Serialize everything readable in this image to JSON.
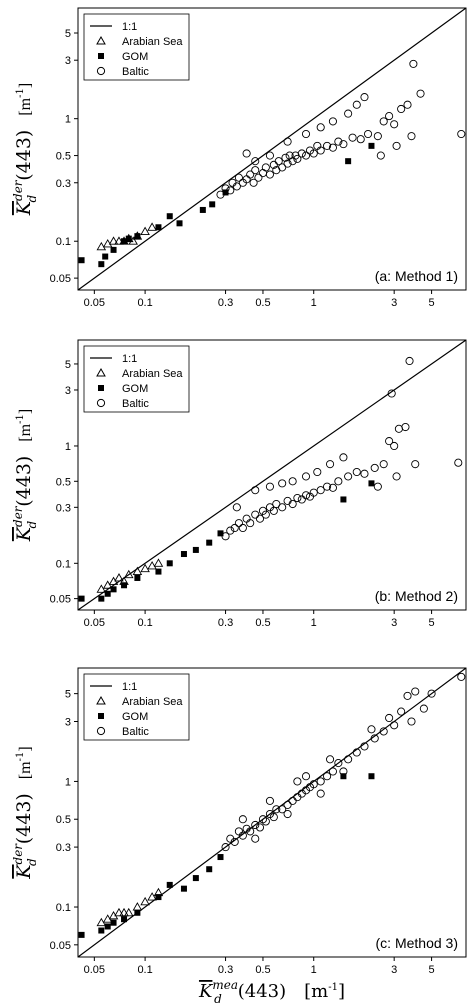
{
  "figure": {
    "ylabel": {
      "main": "K",
      "sub": "d",
      "sup": "der",
      "arg": "(443)",
      "unit": "[m-1]"
    },
    "xlabel": {
      "main": "K",
      "sub": "d",
      "sup": "mea",
      "arg": "(443)",
      "unit": "[m-1]"
    },
    "tick_labels": [
      "0.05",
      "0.1",
      "0.3",
      "0.5",
      "1",
      "3",
      "5"
    ],
    "legend": [
      "1:1",
      "Arabian Sea",
      "GOM",
      "Baltic"
    ]
  },
  "chart_data": [
    {
      "type": "scatter",
      "annotation": "(a: Method 1)",
      "xscale": "log",
      "yscale": "log",
      "xlim": [
        0.04,
        8.0
      ],
      "ylim": [
        0.04,
        8.0
      ],
      "xticks": [
        0.05,
        0.1,
        0.3,
        0.5,
        1,
        3,
        5
      ],
      "yticks": [
        0.05,
        0.1,
        0.3,
        0.5,
        1,
        3,
        5
      ],
      "reference_line": "1:1",
      "legend_position": "top-left",
      "series": [
        {
          "name": "Arabian Sea",
          "marker": "open-triangle",
          "points": [
            [
              0.055,
              0.09
            ],
            [
              0.06,
              0.095
            ],
            [
              0.065,
              0.1
            ],
            [
              0.07,
              0.1
            ],
            [
              0.075,
              0.1
            ],
            [
              0.08,
              0.105
            ],
            [
              0.085,
              0.1
            ],
            [
              0.09,
              0.11
            ],
            [
              0.1,
              0.12
            ],
            [
              0.11,
              0.13
            ]
          ]
        },
        {
          "name": "GOM",
          "marker": "filled-square",
          "points": [
            [
              0.042,
              0.07
            ],
            [
              0.055,
              0.065
            ],
            [
              0.058,
              0.075
            ],
            [
              0.065,
              0.085
            ],
            [
              0.075,
              0.1
            ],
            [
              0.08,
              0.105
            ],
            [
              0.09,
              0.11
            ],
            [
              0.12,
              0.13
            ],
            [
              0.14,
              0.16
            ],
            [
              0.16,
              0.14
            ],
            [
              0.22,
              0.18
            ],
            [
              0.25,
              0.2
            ],
            [
              0.3,
              0.25
            ],
            [
              1.6,
              0.45
            ],
            [
              2.2,
              0.6
            ]
          ]
        },
        {
          "name": "Baltic",
          "marker": "open-circle",
          "points": [
            [
              0.28,
              0.24
            ],
            [
              0.3,
              0.27
            ],
            [
              0.32,
              0.26
            ],
            [
              0.33,
              0.3
            ],
            [
              0.35,
              0.28
            ],
            [
              0.36,
              0.33
            ],
            [
              0.38,
              0.3
            ],
            [
              0.4,
              0.32
            ],
            [
              0.42,
              0.35
            ],
            [
              0.44,
              0.3
            ],
            [
              0.45,
              0.38
            ],
            [
              0.47,
              0.33
            ],
            [
              0.5,
              0.36
            ],
            [
              0.52,
              0.4
            ],
            [
              0.55,
              0.35
            ],
            [
              0.58,
              0.42
            ],
            [
              0.6,
              0.38
            ],
            [
              0.62,
              0.45
            ],
            [
              0.65,
              0.4
            ],
            [
              0.68,
              0.48
            ],
            [
              0.7,
              0.43
            ],
            [
              0.72,
              0.5
            ],
            [
              0.75,
              0.45
            ],
            [
              0.78,
              0.5
            ],
            [
              0.8,
              0.47
            ],
            [
              0.85,
              0.52
            ],
            [
              0.9,
              0.5
            ],
            [
              0.95,
              0.55
            ],
            [
              1.0,
              0.52
            ],
            [
              1.05,
              0.6
            ],
            [
              1.1,
              0.55
            ],
            [
              1.2,
              0.6
            ],
            [
              1.3,
              0.58
            ],
            [
              1.4,
              0.65
            ],
            [
              1.5,
              0.62
            ],
            [
              1.7,
              0.7
            ],
            [
              1.9,
              0.68
            ],
            [
              2.1,
              0.75
            ],
            [
              2.4,
              0.72
            ],
            [
              2.6,
              0.95
            ],
            [
              2.8,
              1.05
            ],
            [
              3.0,
              0.9
            ],
            [
              3.3,
              1.2
            ],
            [
              3.6,
              1.3
            ],
            [
              3.9,
              2.8
            ],
            [
              4.3,
              1.6
            ],
            [
              2.0,
              1.5
            ],
            [
              1.8,
              1.3
            ],
            [
              1.6,
              1.1
            ],
            [
              1.3,
              0.95
            ],
            [
              1.1,
              0.85
            ],
            [
              0.9,
              0.75
            ],
            [
              0.7,
              0.65
            ],
            [
              0.55,
              0.5
            ],
            [
              0.45,
              0.45
            ],
            [
              0.4,
              0.52
            ],
            [
              7.5,
              0.75
            ],
            [
              3.8,
              0.72
            ],
            [
              3.1,
              0.6
            ],
            [
              2.5,
              0.5
            ]
          ]
        }
      ]
    },
    {
      "type": "scatter",
      "annotation": "(b: Method 2)",
      "xscale": "log",
      "yscale": "log",
      "xlim": [
        0.04,
        8.0
      ],
      "ylim": [
        0.04,
        8.0
      ],
      "xticks": [
        0.05,
        0.1,
        0.3,
        0.5,
        1,
        3,
        5
      ],
      "yticks": [
        0.05,
        0.1,
        0.3,
        0.5,
        1,
        3,
        5
      ],
      "reference_line": "1:1",
      "legend_position": "top-left",
      "series": [
        {
          "name": "Arabian Sea",
          "marker": "open-triangle",
          "points": [
            [
              0.055,
              0.06
            ],
            [
              0.06,
              0.065
            ],
            [
              0.065,
              0.07
            ],
            [
              0.07,
              0.075
            ],
            [
              0.075,
              0.07
            ],
            [
              0.08,
              0.08
            ],
            [
              0.09,
              0.085
            ],
            [
              0.1,
              0.09
            ],
            [
              0.11,
              0.095
            ],
            [
              0.12,
              0.1
            ]
          ]
        },
        {
          "name": "GOM",
          "marker": "filled-square",
          "points": [
            [
              0.042,
              0.05
            ],
            [
              0.055,
              0.05
            ],
            [
              0.06,
              0.055
            ],
            [
              0.065,
              0.06
            ],
            [
              0.075,
              0.065
            ],
            [
              0.09,
              0.075
            ],
            [
              0.12,
              0.085
            ],
            [
              0.14,
              0.1
            ],
            [
              0.17,
              0.12
            ],
            [
              0.2,
              0.13
            ],
            [
              0.24,
              0.15
            ],
            [
              0.28,
              0.18
            ],
            [
              1.5,
              0.35
            ],
            [
              2.2,
              0.48
            ]
          ]
        },
        {
          "name": "Baltic",
          "marker": "open-circle",
          "points": [
            [
              0.3,
              0.17
            ],
            [
              0.32,
              0.19
            ],
            [
              0.34,
              0.2
            ],
            [
              0.36,
              0.22
            ],
            [
              0.38,
              0.2
            ],
            [
              0.4,
              0.24
            ],
            [
              0.42,
              0.22
            ],
            [
              0.45,
              0.26
            ],
            [
              0.48,
              0.24
            ],
            [
              0.5,
              0.28
            ],
            [
              0.52,
              0.26
            ],
            [
              0.55,
              0.3
            ],
            [
              0.58,
              0.28
            ],
            [
              0.6,
              0.32
            ],
            [
              0.65,
              0.3
            ],
            [
              0.7,
              0.34
            ],
            [
              0.75,
              0.32
            ],
            [
              0.8,
              0.36
            ],
            [
              0.85,
              0.35
            ],
            [
              0.9,
              0.38
            ],
            [
              0.95,
              0.37
            ],
            [
              1.0,
              0.4
            ],
            [
              1.1,
              0.42
            ],
            [
              1.2,
              0.45
            ],
            [
              1.3,
              0.44
            ],
            [
              1.4,
              0.5
            ],
            [
              1.6,
              0.55
            ],
            [
              1.8,
              0.6
            ],
            [
              2.0,
              0.58
            ],
            [
              2.3,
              0.65
            ],
            [
              2.6,
              0.7
            ],
            [
              2.8,
              1.1
            ],
            [
              3.0,
              1.0
            ],
            [
              3.2,
              1.4
            ],
            [
              3.5,
              1.45
            ],
            [
              3.7,
              5.3
            ],
            [
              2.9,
              2.8
            ],
            [
              0.45,
              0.42
            ],
            [
              0.55,
              0.45
            ],
            [
              0.65,
              0.48
            ],
            [
              0.75,
              0.5
            ],
            [
              0.9,
              0.55
            ],
            [
              1.05,
              0.6
            ],
            [
              1.25,
              0.7
            ],
            [
              1.5,
              0.8
            ],
            [
              0.35,
              0.3
            ],
            [
              7.2,
              0.72
            ],
            [
              4.0,
              0.7
            ],
            [
              3.1,
              0.55
            ],
            [
              2.4,
              0.45
            ]
          ]
        }
      ]
    },
    {
      "type": "scatter",
      "annotation": "(c: Method 3)",
      "xscale": "log",
      "yscale": "log",
      "xlim": [
        0.04,
        8.0
      ],
      "ylim": [
        0.04,
        8.0
      ],
      "xticks": [
        0.05,
        0.1,
        0.3,
        0.5,
        1,
        3,
        5
      ],
      "yticks": [
        0.05,
        0.1,
        0.3,
        0.5,
        1,
        3,
        5
      ],
      "reference_line": "1:1",
      "legend_position": "top-left",
      "series": [
        {
          "name": "Arabian Sea",
          "marker": "open-triangle",
          "points": [
            [
              0.055,
              0.075
            ],
            [
              0.06,
              0.08
            ],
            [
              0.065,
              0.085
            ],
            [
              0.07,
              0.09
            ],
            [
              0.075,
              0.09
            ],
            [
              0.08,
              0.09
            ],
            [
              0.09,
              0.1
            ],
            [
              0.1,
              0.11
            ],
            [
              0.11,
              0.12
            ],
            [
              0.12,
              0.13
            ]
          ]
        },
        {
          "name": "GOM",
          "marker": "filled-square",
          "points": [
            [
              0.042,
              0.06
            ],
            [
              0.055,
              0.065
            ],
            [
              0.06,
              0.07
            ],
            [
              0.065,
              0.075
            ],
            [
              0.075,
              0.08
            ],
            [
              0.09,
              0.09
            ],
            [
              0.12,
              0.12
            ],
            [
              0.14,
              0.15
            ],
            [
              0.17,
              0.14
            ],
            [
              0.2,
              0.17
            ],
            [
              0.24,
              0.2
            ],
            [
              0.28,
              0.25
            ],
            [
              1.5,
              1.1
            ],
            [
              2.2,
              1.1
            ]
          ]
        },
        {
          "name": "Baltic",
          "marker": "open-circle",
          "points": [
            [
              0.3,
              0.3
            ],
            [
              0.32,
              0.35
            ],
            [
              0.34,
              0.33
            ],
            [
              0.36,
              0.4
            ],
            [
              0.38,
              0.37
            ],
            [
              0.4,
              0.42
            ],
            [
              0.42,
              0.4
            ],
            [
              0.45,
              0.45
            ],
            [
              0.48,
              0.43
            ],
            [
              0.5,
              0.5
            ],
            [
              0.52,
              0.48
            ],
            [
              0.55,
              0.55
            ],
            [
              0.58,
              0.52
            ],
            [
              0.6,
              0.6
            ],
            [
              0.65,
              0.6
            ],
            [
              0.7,
              0.65
            ],
            [
              0.75,
              0.7
            ],
            [
              0.8,
              0.75
            ],
            [
              0.85,
              0.8
            ],
            [
              0.9,
              0.85
            ],
            [
              0.95,
              0.9
            ],
            [
              1.0,
              0.95
            ],
            [
              1.1,
              1.0
            ],
            [
              1.2,
              1.1
            ],
            [
              1.3,
              1.2
            ],
            [
              1.4,
              1.4
            ],
            [
              1.6,
              1.5
            ],
            [
              1.8,
              1.7
            ],
            [
              2.0,
              1.9
            ],
            [
              2.3,
              2.2
            ],
            [
              2.6,
              2.5
            ],
            [
              2.8,
              3.2
            ],
            [
              3.0,
              2.8
            ],
            [
              3.3,
              3.6
            ],
            [
              3.6,
              4.8
            ],
            [
              4.0,
              5.2
            ],
            [
              4.5,
              3.8
            ],
            [
              5.0,
              5.0
            ],
            [
              7.5,
              6.8
            ],
            [
              0.55,
              0.7
            ],
            [
              0.7,
              0.55
            ],
            [
              0.9,
              1.1
            ],
            [
              1.1,
              0.8
            ],
            [
              0.45,
              0.35
            ],
            [
              0.38,
              0.5
            ],
            [
              1.5,
              1.2
            ],
            [
              2.2,
              2.6
            ],
            [
              0.8,
              1.0
            ],
            [
              1.25,
              1.5
            ],
            [
              3.8,
              3.0
            ]
          ]
        }
      ]
    }
  ]
}
